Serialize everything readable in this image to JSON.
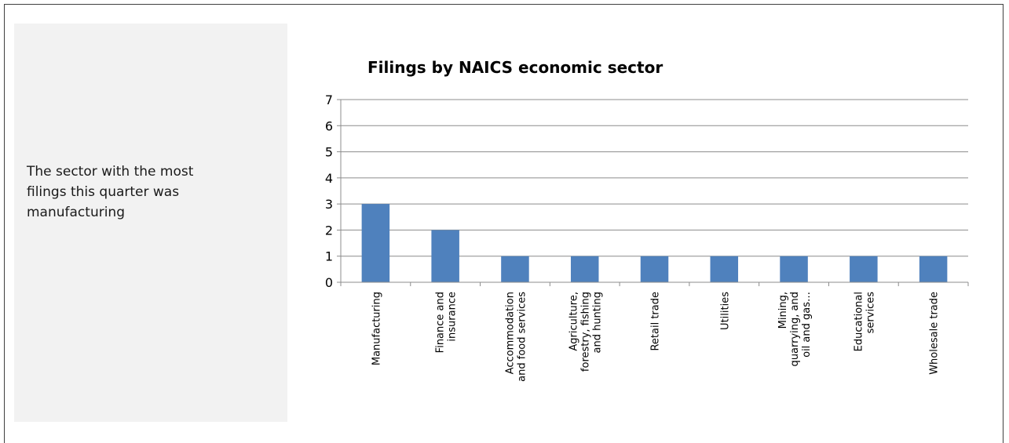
{
  "panel": {
    "text_lines": [
      "The sector with the most",
      "filings this quarter was",
      "manufacturing"
    ]
  },
  "chart_data": {
    "type": "bar",
    "title": "Filings by NAICS economic sector",
    "xlabel": "",
    "ylabel": "",
    "ylim": [
      0,
      7
    ],
    "yticks": [
      0,
      1,
      2,
      3,
      4,
      5,
      6,
      7
    ],
    "grid": true,
    "categories": [
      [
        "Manufacturing"
      ],
      [
        "Finance and",
        "insurance"
      ],
      [
        "Accommodation",
        "and food services"
      ],
      [
        "Agriculture,",
        "forestry, fishing",
        "and hunting"
      ],
      [
        "Retail trade"
      ],
      [
        "Utilities"
      ],
      [
        "Mining,",
        "quarrying, and",
        "oil and gas…"
      ],
      [
        "Educational",
        "services"
      ],
      [
        "Wholesale trade"
      ]
    ],
    "values": [
      3,
      2,
      1,
      1,
      1,
      1,
      1,
      1,
      1
    ],
    "bar_color": "#4f81bd"
  }
}
